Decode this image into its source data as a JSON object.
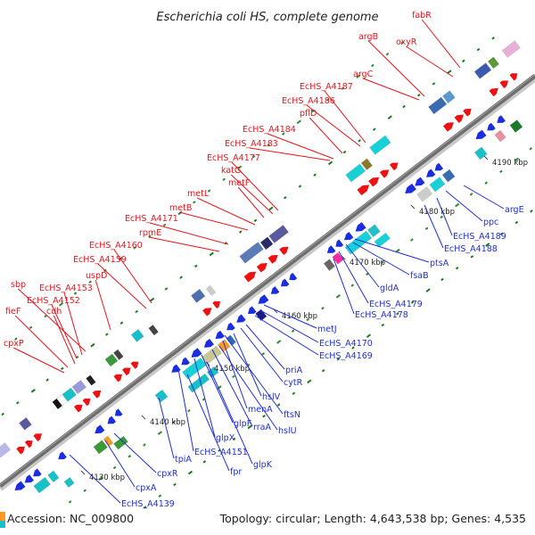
{
  "title": "Escherichia coli HS, complete genome",
  "footer": {
    "accession": "Accession: NC_009800",
    "summary": "Topology: circular; Length: 4,643,538 bp; Genes: 4,535"
  },
  "colors": {
    "forward_label": "#e8141c",
    "reverse_label": "#1f2fd6",
    "backbone": "#6e6e6e",
    "arrow_forward": "#ee1111",
    "arrow_reverse": "#1a2ee0",
    "tick_dot": "#1a7a1a"
  },
  "scale_ticks": [
    "4130 kbp",
    "4140 kbp",
    "4150 kbp",
    "4160 kbp",
    "4170 kbp",
    "4180 kbp",
    "4190 kbp"
  ],
  "forward_genes": [
    "fabR",
    "oxyR",
    "argB",
    "argC",
    "EcHS_A4187",
    "EcHS_A4186",
    "pflD",
    "EcHS_A4184",
    "EcHS_A4183",
    "EcHS_A4177",
    "katG",
    "metF",
    "metL",
    "metB",
    "EcHS_A4171",
    "rpmE",
    "EcHS_A4160",
    "EcHS_A4159",
    "uspD",
    "sbp",
    "EcHS_A4153",
    "EcHS_A4152",
    "cdh",
    "fieF",
    "cpxP"
  ],
  "reverse_genes": [
    "argE",
    "ppc",
    "EcHS_A4189",
    "EcHS_A4188",
    "ptsA",
    "fsaB",
    "gldA",
    "EcHS_A4179",
    "EcHS_A4178",
    "metJ",
    "EcHS_A4170",
    "EcHS_A4169",
    "priA",
    "cytR",
    "hslV",
    "ftsN",
    "menA",
    "hslU",
    "rraA",
    "glpF",
    "glpX",
    "EcHS_A4151",
    "glpK",
    "fpr",
    "tpiA",
    "cpxR",
    "cpxA",
    "EcHS_A4139"
  ]
}
